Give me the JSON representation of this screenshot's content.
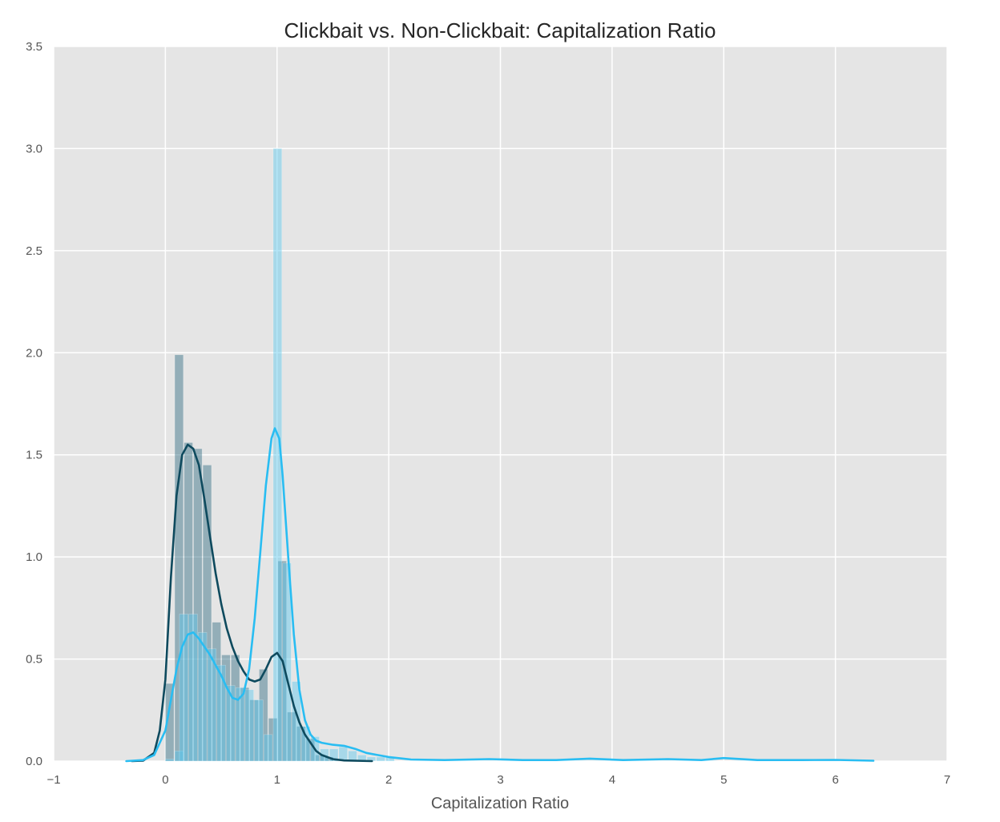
{
  "chart_data": {
    "type": "histogram_kde",
    "title": "Clickbait vs. Non-Clickbait: Capitalization Ratio",
    "xlabel": "Capitalization Ratio",
    "ylabel": "",
    "xlim": [
      -1,
      7
    ],
    "ylim": [
      0,
      3.5
    ],
    "xticks": [
      "−1",
      "0",
      "1",
      "2",
      "3",
      "4",
      "5",
      "6",
      "7"
    ],
    "xtick_values": [
      -1,
      0,
      1,
      2,
      3,
      4,
      5,
      6,
      7
    ],
    "yticks": [
      "0.0",
      "0.5",
      "1.0",
      "1.5",
      "2.0",
      "2.5",
      "3.0",
      "3.5"
    ],
    "ytick_values": [
      0,
      0.5,
      1.0,
      1.5,
      2.0,
      2.5,
      3.0,
      3.5
    ],
    "grid": true,
    "background": "#e5e5e5",
    "grid_color": "#ffffff",
    "series": [
      {
        "color": "#2e6b80",
        "kde_color": "#0e4a5e",
        "bin_width": 0.084,
        "histogram": [
          {
            "x": 0.0,
            "h": 0.38
          },
          {
            "x": 0.084,
            "h": 1.99
          },
          {
            "x": 0.168,
            "h": 1.56
          },
          {
            "x": 0.252,
            "h": 1.53
          },
          {
            "x": 0.336,
            "h": 1.45
          },
          {
            "x": 0.42,
            "h": 0.68
          },
          {
            "x": 0.504,
            "h": 0.52
          },
          {
            "x": 0.588,
            "h": 0.52
          },
          {
            "x": 0.672,
            "h": 0.36
          },
          {
            "x": 0.756,
            "h": 0.3
          },
          {
            "x": 0.84,
            "h": 0.45
          },
          {
            "x": 0.924,
            "h": 0.21
          },
          {
            "x": 1.008,
            "h": 0.98
          },
          {
            "x": 1.092,
            "h": 0.24
          },
          {
            "x": 1.176,
            "h": 0.17
          },
          {
            "x": 1.26,
            "h": 0.11
          },
          {
            "x": 1.344,
            "h": 0.03
          },
          {
            "x": 1.428,
            "h": 0.02
          },
          {
            "x": 1.512,
            "h": 0.01
          }
        ],
        "kde": [
          [
            -0.3,
            0.0
          ],
          [
            -0.2,
            0.002
          ],
          [
            -0.1,
            0.04
          ],
          [
            -0.05,
            0.15
          ],
          [
            0.0,
            0.4
          ],
          [
            0.05,
            0.9
          ],
          [
            0.1,
            1.3
          ],
          [
            0.15,
            1.5
          ],
          [
            0.2,
            1.55
          ],
          [
            0.25,
            1.53
          ],
          [
            0.3,
            1.45
          ],
          [
            0.35,
            1.28
          ],
          [
            0.4,
            1.1
          ],
          [
            0.45,
            0.92
          ],
          [
            0.5,
            0.77
          ],
          [
            0.55,
            0.65
          ],
          [
            0.6,
            0.56
          ],
          [
            0.65,
            0.49
          ],
          [
            0.7,
            0.44
          ],
          [
            0.75,
            0.4
          ],
          [
            0.8,
            0.39
          ],
          [
            0.85,
            0.4
          ],
          [
            0.9,
            0.45
          ],
          [
            0.95,
            0.51
          ],
          [
            1.0,
            0.53
          ],
          [
            1.05,
            0.49
          ],
          [
            1.1,
            0.38
          ],
          [
            1.15,
            0.27
          ],
          [
            1.2,
            0.19
          ],
          [
            1.25,
            0.13
          ],
          [
            1.3,
            0.09
          ],
          [
            1.35,
            0.05
          ],
          [
            1.4,
            0.03
          ],
          [
            1.5,
            0.01
          ],
          [
            1.6,
            0.003
          ],
          [
            1.85,
            0.0
          ]
        ]
      },
      {
        "color": "#5bc8ee",
        "kde_color": "#29bdf2",
        "bin_width": 0.084,
        "histogram": [
          {
            "x": 0.0,
            "h": 0.01
          },
          {
            "x": 0.084,
            "h": 0.05
          },
          {
            "x": 0.126,
            "h": 0.72
          },
          {
            "x": 0.21,
            "h": 0.72
          },
          {
            "x": 0.294,
            "h": 0.63
          },
          {
            "x": 0.378,
            "h": 0.55
          },
          {
            "x": 0.462,
            "h": 0.47
          },
          {
            "x": 0.546,
            "h": 0.37
          },
          {
            "x": 0.63,
            "h": 0.36
          },
          {
            "x": 0.714,
            "h": 0.35
          },
          {
            "x": 0.798,
            "h": 0.3
          },
          {
            "x": 0.882,
            "h": 0.13
          },
          {
            "x": 0.966,
            "h": 3.0
          },
          {
            "x": 1.05,
            "h": 0.97
          },
          {
            "x": 1.134,
            "h": 0.39
          },
          {
            "x": 1.218,
            "h": 0.17
          },
          {
            "x": 1.302,
            "h": 0.12
          },
          {
            "x": 1.386,
            "h": 0.06
          },
          {
            "x": 1.47,
            "h": 0.06
          },
          {
            "x": 1.554,
            "h": 0.07
          },
          {
            "x": 1.638,
            "h": 0.05
          },
          {
            "x": 1.722,
            "h": 0.03
          },
          {
            "x": 1.806,
            "h": 0.02
          },
          {
            "x": 1.89,
            "h": 0.02
          },
          {
            "x": 1.974,
            "h": 0.02
          }
        ],
        "kde": [
          [
            -0.35,
            0.0
          ],
          [
            -0.2,
            0.005
          ],
          [
            -0.1,
            0.03
          ],
          [
            0.0,
            0.15
          ],
          [
            0.05,
            0.3
          ],
          [
            0.1,
            0.45
          ],
          [
            0.15,
            0.56
          ],
          [
            0.2,
            0.62
          ],
          [
            0.25,
            0.63
          ],
          [
            0.3,
            0.6
          ],
          [
            0.4,
            0.52
          ],
          [
            0.5,
            0.42
          ],
          [
            0.55,
            0.36
          ],
          [
            0.6,
            0.31
          ],
          [
            0.65,
            0.3
          ],
          [
            0.7,
            0.33
          ],
          [
            0.75,
            0.45
          ],
          [
            0.8,
            0.7
          ],
          [
            0.85,
            1.02
          ],
          [
            0.9,
            1.35
          ],
          [
            0.95,
            1.58
          ],
          [
            0.98,
            1.63
          ],
          [
            1.02,
            1.58
          ],
          [
            1.05,
            1.4
          ],
          [
            1.1,
            1.0
          ],
          [
            1.15,
            0.62
          ],
          [
            1.2,
            0.35
          ],
          [
            1.25,
            0.2
          ],
          [
            1.3,
            0.13
          ],
          [
            1.35,
            0.1
          ],
          [
            1.4,
            0.09
          ],
          [
            1.5,
            0.08
          ],
          [
            1.6,
            0.075
          ],
          [
            1.7,
            0.06
          ],
          [
            1.8,
            0.04
          ],
          [
            1.9,
            0.03
          ],
          [
            2.0,
            0.02
          ],
          [
            2.2,
            0.008
          ],
          [
            2.5,
            0.005
          ],
          [
            2.9,
            0.01
          ],
          [
            3.2,
            0.005
          ],
          [
            3.5,
            0.005
          ],
          [
            3.8,
            0.012
          ],
          [
            4.1,
            0.005
          ],
          [
            4.5,
            0.01
          ],
          [
            4.8,
            0.005
          ],
          [
            5.0,
            0.015
          ],
          [
            5.3,
            0.005
          ],
          [
            5.7,
            0.005
          ],
          [
            6.0,
            0.006
          ],
          [
            6.34,
            0.002
          ]
        ]
      }
    ]
  }
}
